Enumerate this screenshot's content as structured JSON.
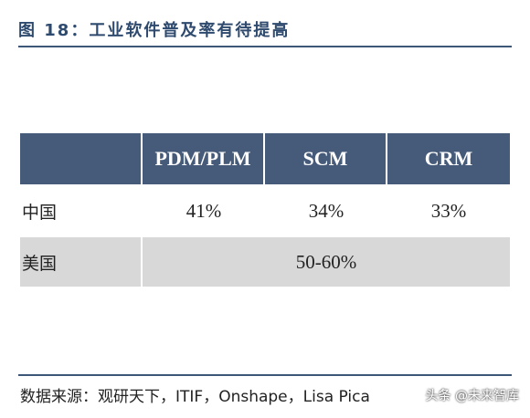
{
  "title": "图 18：工业软件普及率有待提高",
  "table": {
    "headers": [
      "",
      "PDM/PLM",
      "SCM",
      "CRM"
    ],
    "rows": [
      {
        "label": "中国",
        "values": [
          "41%",
          "34%",
          "33%"
        ]
      }
    ],
    "usa": {
      "label": "美国",
      "value": "50-60%"
    }
  },
  "source": "数据来源：观研天下，ITIF，Onshape，Lisa Pica",
  "watermark": "头条 @未来智库"
}
